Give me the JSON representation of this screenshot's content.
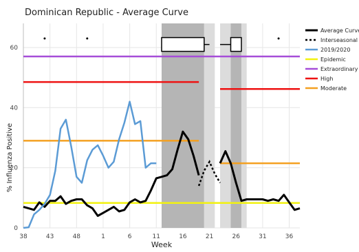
{
  "chart_data": {
    "type": "line",
    "title": "Dominican Republic - Average Curve",
    "xlabel": "Week",
    "ylabel": "% Influenza Positive",
    "ylim": [
      0,
      68
    ],
    "yticks": [
      0,
      20,
      40,
      60
    ],
    "xtick_labels": [
      "38",
      "43",
      "48",
      "1",
      "6",
      "11",
      "16",
      "21",
      "26",
      "31",
      "36"
    ],
    "x_index_range": [
      0,
      52
    ],
    "grid": true,
    "legend_position": "right",
    "colors": {
      "average": "#000000",
      "interseasonal": "#000000",
      "season_2019_2020": "#5b9bd5",
      "epidemic": "#f2f20f",
      "extraordinary": "#a64dd8",
      "high": "#ee1111",
      "moderate": "#f4a020",
      "band_dark": "#b5b5b5",
      "band_light": "#dcdcdc"
    },
    "thresholds": [
      {
        "name": "Epidemic",
        "value": 8.3
      },
      {
        "name": "Extraordinary",
        "value": 57
      },
      {
        "name": "High",
        "segments": [
          {
            "x": [
              0,
              33
            ],
            "value": 48.5
          },
          {
            "x": [
              37,
              52
            ],
            "value": 46.2
          }
        ]
      },
      {
        "name": "Moderate",
        "segments": [
          {
            "x": [
              0,
              33
            ],
            "value": 29
          },
          {
            "x": [
              37,
              52
            ],
            "value": 21.5
          }
        ]
      }
    ],
    "series": [
      {
        "name": "Average Curve",
        "segments": [
          {
            "x": [
              0,
              1,
              2,
              3,
              4,
              5,
              6,
              7,
              8,
              9,
              10,
              11,
              12,
              13,
              14,
              15,
              16,
              17,
              18,
              19,
              20,
              21,
              22,
              23,
              24,
              25,
              26,
              27,
              28,
              29,
              30,
              31,
              32,
              33
            ],
            "y": [
              7,
              6.5,
              6,
              8.5,
              7,
              9,
              9,
              10.5,
              8,
              9,
              9.5,
              9.5,
              7.5,
              6.5,
              4,
              5,
              6,
              7,
              5.5,
              6,
              8.5,
              9.5,
              8.5,
              9,
              12.5,
              16.5,
              17,
              17.5,
              19.5,
              26,
              32,
              29.5,
              24,
              17.5
            ]
          },
          {
            "x": [
              37,
              38,
              39,
              40,
              41,
              42,
              43,
              44,
              45,
              46,
              47,
              48,
              49,
              50,
              51,
              52
            ],
            "y": [
              21.5,
              25.5,
              21.5,
              15,
              9,
              9.5,
              9.5,
              9.5,
              9.5,
              9,
              9.5,
              9,
              11,
              8.5,
              6,
              6.5
            ]
          }
        ]
      },
      {
        "name": "Interseasonal",
        "x": [
          33,
          34,
          35,
          36,
          37
        ],
        "y": [
          14,
          19,
          22,
          18,
          15
        ]
      },
      {
        "name": "2019/2020",
        "x": [
          0,
          1,
          2,
          3,
          4,
          5,
          6,
          7,
          8,
          9,
          10,
          11,
          12,
          13,
          14,
          15,
          16,
          17,
          18,
          19,
          20,
          21,
          22,
          23,
          24,
          25
        ],
        "y": [
          0,
          0.2,
          4.5,
          6,
          8,
          11,
          19,
          33,
          36,
          27,
          17,
          15,
          22.5,
          26,
          27.5,
          24,
          20,
          22,
          29.5,
          35,
          42,
          34.5,
          35.5,
          20,
          21.5,
          21.5
        ]
      },
      {
        "name": "Epidemic"
      },
      {
        "name": "Extraordinary"
      },
      {
        "name": "High"
      },
      {
        "name": "Moderate"
      }
    ],
    "bands": [
      {
        "x": [
          26,
          34
        ],
        "shade": "dark"
      },
      {
        "x": [
          34,
          36
        ],
        "shade": "light"
      },
      {
        "x": [
          37,
          39
        ],
        "shade": "light"
      },
      {
        "x": [
          39,
          41
        ],
        "shade": "dark"
      },
      {
        "x": [
          41,
          42
        ],
        "shade": "light"
      }
    ],
    "boxplots": [
      {
        "whisker": [
          26,
          35
        ],
        "box": [
          26,
          34
        ],
        "median": 30,
        "y": 61
      },
      {
        "whisker": [
          37,
          41
        ],
        "box": [
          39,
          41
        ],
        "median": 40,
        "y": 61
      }
    ],
    "outliers": [
      {
        "x": 4,
        "y": 63
      },
      {
        "x": 12,
        "y": 63
      },
      {
        "x": 48,
        "y": 63
      }
    ]
  }
}
